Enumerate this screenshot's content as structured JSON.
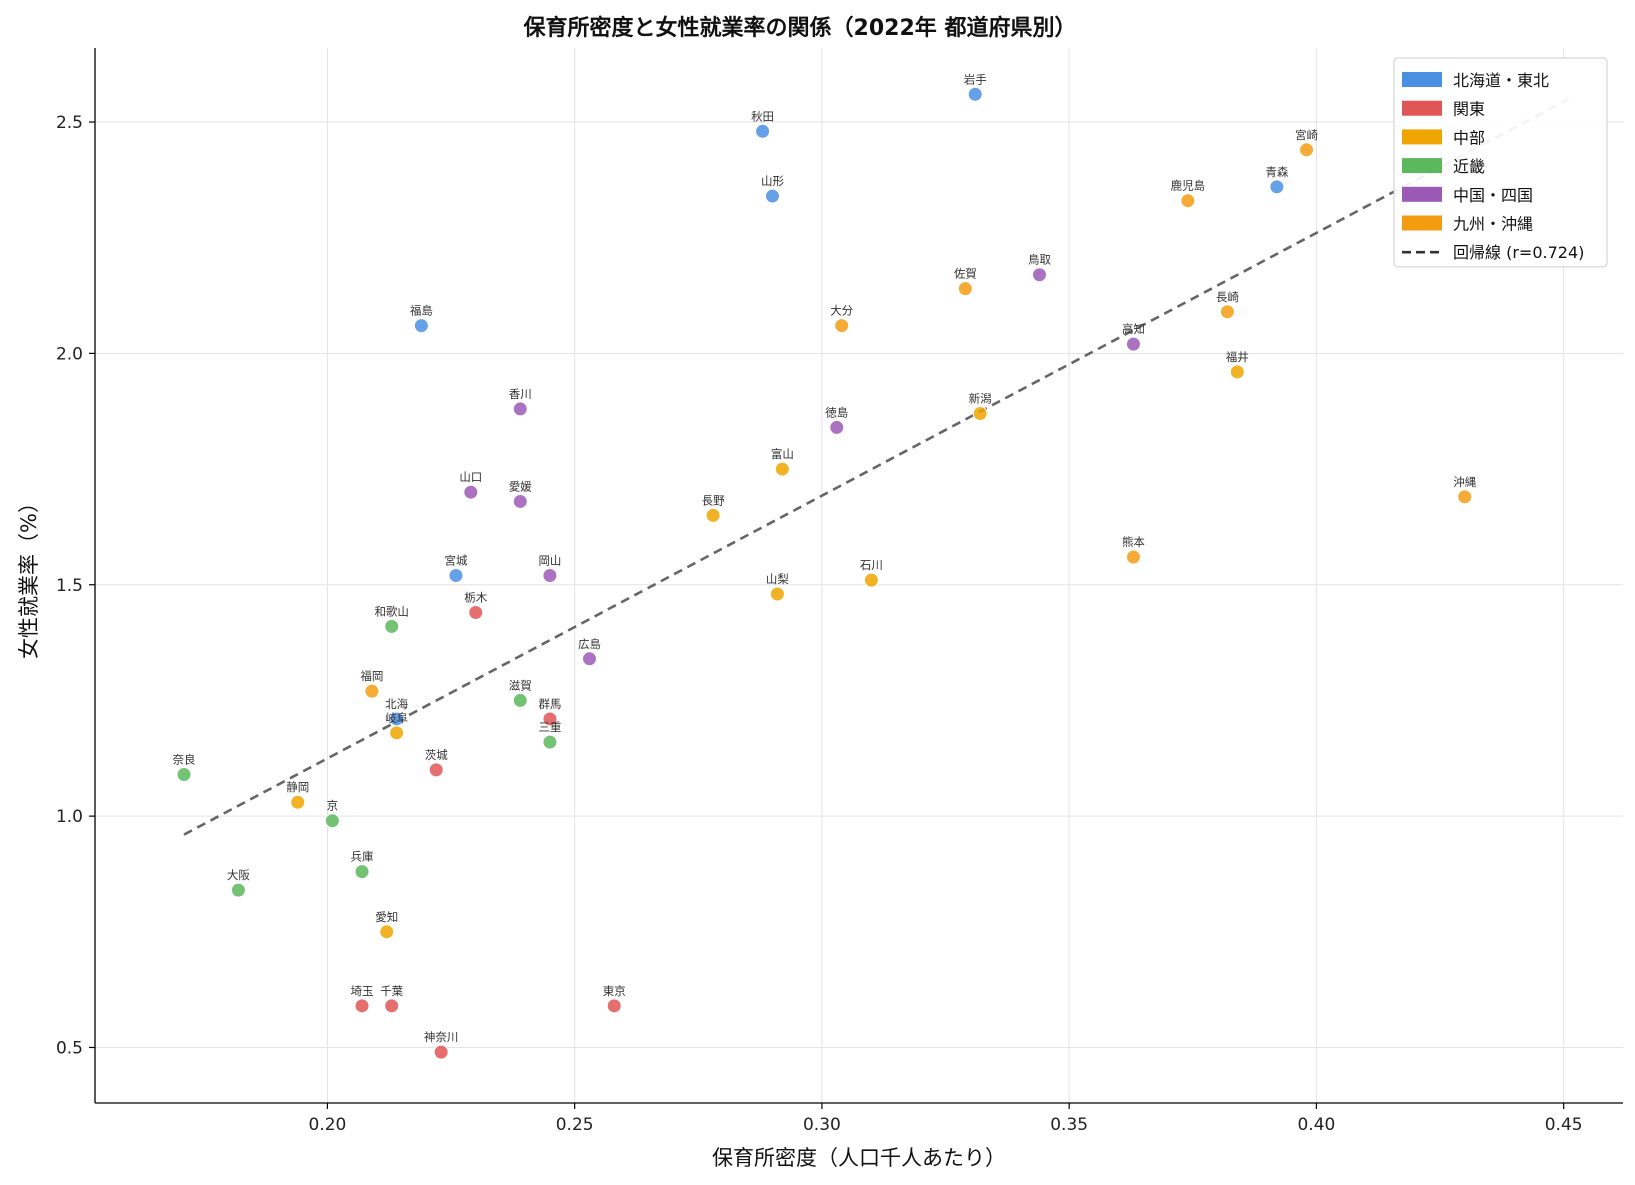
{
  "chart_data": {
    "type": "scatter",
    "title": "保育所密度と女性就業率の関係（2022年 都道府県別）",
    "xlabel": "保育所密度（人口千人あたり）",
    "ylabel": "女性就業率（%）",
    "xlim": [
      0.153,
      0.462
    ],
    "ylim": [
      0.38,
      2.66
    ],
    "xticks": [
      0.2,
      0.25,
      0.3,
      0.35,
      0.4,
      0.45
    ],
    "xtick_labels": [
      "0.20",
      "0.25",
      "0.30",
      "0.35",
      "0.40",
      "0.45"
    ],
    "yticks": [
      0.5,
      1.0,
      1.5,
      2.0,
      2.5
    ],
    "ytick_labels": [
      "0.5",
      "1.0",
      "1.5",
      "2.0",
      "2.5"
    ],
    "grid": true,
    "legend_position": "top-right",
    "series": [
      {
        "name": "北海道・東北",
        "color": "#4a90e2",
        "points": [
          {
            "label": "北海",
            "x": 0.214,
            "y": 1.21
          },
          {
            "label": "青森",
            "x": 0.392,
            "y": 2.36
          },
          {
            "label": "岩手",
            "x": 0.331,
            "y": 2.56
          },
          {
            "label": "宮城",
            "x": 0.226,
            "y": 1.52
          },
          {
            "label": "秋田",
            "x": 0.288,
            "y": 2.48
          },
          {
            "label": "山形",
            "x": 0.29,
            "y": 2.34
          },
          {
            "label": "福島",
            "x": 0.219,
            "y": 2.06
          }
        ]
      },
      {
        "name": "関東",
        "color": "#e05555",
        "points": [
          {
            "label": "茨城",
            "x": 0.222,
            "y": 1.1
          },
          {
            "label": "栃木",
            "x": 0.23,
            "y": 1.44
          },
          {
            "label": "群馬",
            "x": 0.245,
            "y": 1.21
          },
          {
            "label": "埼玉",
            "x": 0.207,
            "y": 0.59
          },
          {
            "label": "千葉",
            "x": 0.213,
            "y": 0.59
          },
          {
            "label": "東京",
            "x": 0.258,
            "y": 0.59
          },
          {
            "label": "神奈川",
            "x": 0.223,
            "y": 0.49
          }
        ]
      },
      {
        "name": "中部",
        "color": "#f0a500",
        "points": [
          {
            "label": "新潟",
            "x": 0.332,
            "y": 1.87
          },
          {
            "label": "富山",
            "x": 0.292,
            "y": 1.75
          },
          {
            "label": "石川",
            "x": 0.31,
            "y": 1.51
          },
          {
            "label": "福井",
            "x": 0.384,
            "y": 1.96
          },
          {
            "label": "山梨",
            "x": 0.291,
            "y": 1.48
          },
          {
            "label": "長野",
            "x": 0.278,
            "y": 1.65
          },
          {
            "label": "岐阜",
            "x": 0.214,
            "y": 1.18
          },
          {
            "label": "静岡",
            "x": 0.194,
            "y": 1.03
          },
          {
            "label": "愛知",
            "x": 0.212,
            "y": 0.75
          }
        ]
      },
      {
        "name": "近畿",
        "color": "#5cb85c",
        "points": [
          {
            "label": "三重",
            "x": 0.245,
            "y": 1.16
          },
          {
            "label": "滋賀",
            "x": 0.239,
            "y": 1.25
          },
          {
            "label": "京",
            "x": 0.201,
            "y": 0.99
          },
          {
            "label": "大阪",
            "x": 0.182,
            "y": 0.84
          },
          {
            "label": "兵庫",
            "x": 0.207,
            "y": 0.88
          },
          {
            "label": "奈良",
            "x": 0.171,
            "y": 1.09
          },
          {
            "label": "和歌山",
            "x": 0.213,
            "y": 1.41
          }
        ]
      },
      {
        "name": "中国・四国",
        "color": "#9b59b6",
        "points": [
          {
            "label": "鳥取",
            "x": 0.344,
            "y": 2.17
          },
          {
            "label": "岡山",
            "x": 0.245,
            "y": 1.52
          },
          {
            "label": "広島",
            "x": 0.253,
            "y": 1.34
          },
          {
            "label": "山口",
            "x": 0.229,
            "y": 1.7
          },
          {
            "label": "徳島",
            "x": 0.303,
            "y": 1.84
          },
          {
            "label": "香川",
            "x": 0.239,
            "y": 1.88
          },
          {
            "label": "愛媛",
            "x": 0.239,
            "y": 1.68
          },
          {
            "label": "高知",
            "x": 0.363,
            "y": 2.02
          }
        ]
      },
      {
        "name": "九州・沖縄",
        "color": "#f39c12",
        "points": [
          {
            "label": "福岡",
            "x": 0.209,
            "y": 1.27
          },
          {
            "label": "佐賀",
            "x": 0.329,
            "y": 2.14
          },
          {
            "label": "長崎",
            "x": 0.382,
            "y": 2.09
          },
          {
            "label": "熊本",
            "x": 0.363,
            "y": 1.56
          },
          {
            "label": "大分",
            "x": 0.304,
            "y": 2.06
          },
          {
            "label": "宮崎",
            "x": 0.398,
            "y": 2.44
          },
          {
            "label": "鹿児島",
            "x": 0.374,
            "y": 2.33
          },
          {
            "label": "沖縄",
            "x": 0.43,
            "y": 1.69
          }
        ]
      }
    ],
    "regression": {
      "name": "回帰線 (r=0.724)",
      "color": "#666666",
      "x": [
        0.171,
        0.451
      ],
      "y": [
        0.96,
        2.55
      ]
    }
  }
}
